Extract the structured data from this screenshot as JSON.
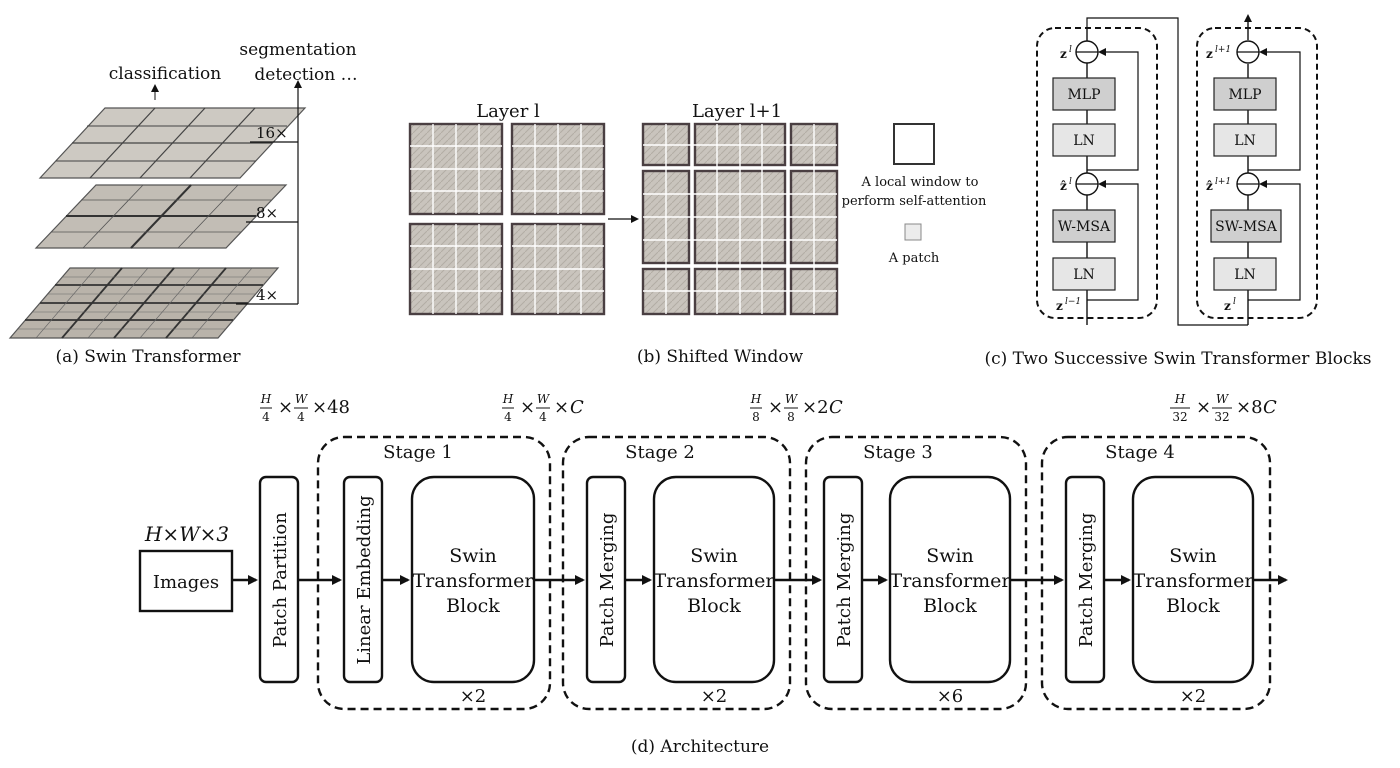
{
  "panel_a": {
    "caption": "(a) Swin Transformer",
    "top_labels": {
      "classification": "classification",
      "segmentation": "segmentation",
      "detection": "detection …"
    },
    "scales": [
      "16×",
      "8×",
      "4×"
    ]
  },
  "panel_b": {
    "caption": "(b) Shifted Window",
    "layer_l": "Layer l",
    "layer_l1": "Layer l+1",
    "legend_window_line1": "A local window to",
    "legend_window_line2": "perform self-attention",
    "legend_patch": "A patch"
  },
  "panel_c": {
    "caption": "(c) Two Successive Swin Transformer Blocks",
    "block1": {
      "mlp": "MLP",
      "ln": "LN",
      "msa": "W-MSA",
      "ln2": "LN"
    },
    "block2": {
      "mlp": "MLP",
      "ln": "LN",
      "msa": "SW-MSA",
      "ln2": "LN"
    }
  },
  "panel_d": {
    "caption": "(d) Architecture",
    "input_dim": "H×W×3",
    "images": "Images",
    "patch_partition": "Patch Partition",
    "linear_embedding": "Linear Embedding",
    "patch_merging": "Patch Merging",
    "swin_line1": "Swin",
    "swin_line2": "Transformer",
    "swin_line3": "Block",
    "stages": [
      {
        "name": "Stage 1",
        "repeat": "×2"
      },
      {
        "name": "Stage 2",
        "repeat": "×2"
      },
      {
        "name": "Stage 3",
        "repeat": "×6"
      },
      {
        "name": "Stage 4",
        "repeat": "×2"
      }
    ]
  }
}
